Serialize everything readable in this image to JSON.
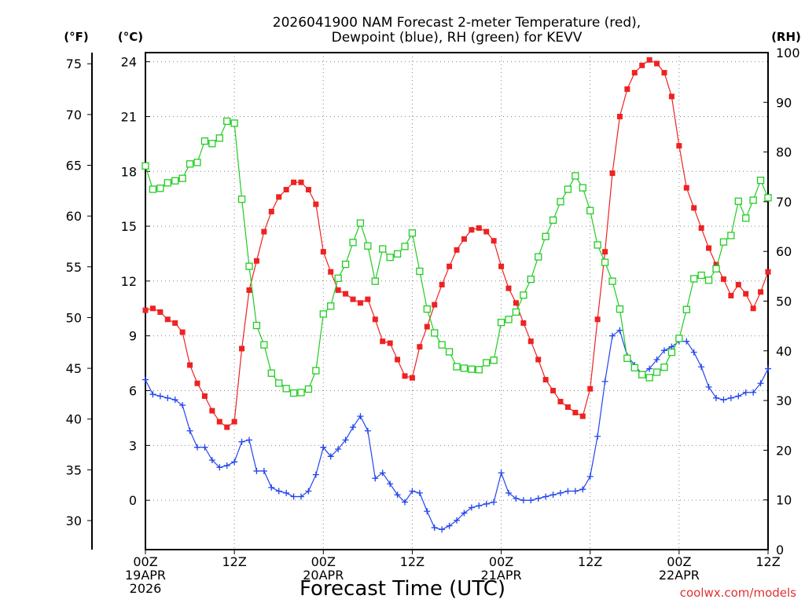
{
  "chart_data": {
    "type": "line",
    "title": [
      "2026041900 NAM Forecast 2-meter Temperature (red),",
      "Dewpoint (blue), RH (green) for KEVV"
    ],
    "xlabel": "Forecast Time (UTC)",
    "credit": "coolwx.com/models",
    "unit_f": "(°F)",
    "unit_c": "(°C)",
    "unit_rh": "(RH)",
    "xlim": [
      0,
      84
    ],
    "ylim_c": [
      -2.7,
      24.5
    ],
    "ylim_rh": [
      0,
      100
    ],
    "x_ticks": [
      {
        "x": 0,
        "lines": [
          "00Z",
          "19APR",
          "2026"
        ]
      },
      {
        "x": 12,
        "lines": [
          "12Z"
        ]
      },
      {
        "x": 24,
        "lines": [
          "00Z",
          "20APR"
        ]
      },
      {
        "x": 36,
        "lines": [
          "12Z"
        ]
      },
      {
        "x": 48,
        "lines": [
          "00Z",
          "21APR"
        ]
      },
      {
        "x": 60,
        "lines": [
          "12Z"
        ]
      },
      {
        "x": 72,
        "lines": [
          "00Z",
          "22APR"
        ]
      },
      {
        "x": 84,
        "lines": [
          "12Z"
        ]
      }
    ],
    "c_ticks": [
      0,
      3,
      6,
      9,
      12,
      15,
      18,
      21,
      24
    ],
    "f_ticks": [
      30,
      35,
      40,
      45,
      50,
      55,
      60,
      65,
      70,
      75
    ],
    "rh_ticks": [
      0,
      10,
      20,
      30,
      40,
      50,
      60,
      70,
      80,
      90,
      100
    ],
    "grid": true,
    "x": [
      0,
      1,
      2,
      3,
      4,
      5,
      6,
      7,
      8,
      9,
      10,
      11,
      12,
      13,
      14,
      15,
      16,
      17,
      18,
      19,
      20,
      21,
      22,
      23,
      24,
      25,
      26,
      27,
      28,
      29,
      30,
      31,
      32,
      33,
      34,
      35,
      36,
      37,
      38,
      39,
      40,
      41,
      42,
      43,
      44,
      45,
      46,
      47,
      48,
      49,
      50,
      51,
      52,
      53,
      54,
      55,
      56,
      57,
      58,
      59,
      60,
      61,
      62,
      63,
      64,
      65,
      66,
      67,
      68,
      69,
      70,
      71,
      72,
      73,
      74,
      75,
      76,
      77,
      78,
      79,
      80,
      81,
      82,
      83,
      84
    ],
    "series": [
      {
        "name": "2-meter Temperature (red)",
        "color": "#ee2222",
        "marker": "filled-square",
        "axis": "C",
        "values": [
          10.4,
          10.5,
          10.3,
          9.9,
          9.7,
          9.2,
          7.4,
          6.4,
          5.7,
          4.9,
          4.3,
          4.0,
          4.3,
          8.3,
          11.5,
          13.1,
          14.7,
          15.8,
          16.6,
          17.0,
          17.4,
          17.4,
          17.0,
          16.2,
          13.6,
          12.5,
          11.5,
          11.3,
          11.0,
          10.8,
          11.0,
          9.9,
          8.7,
          8.6,
          7.7,
          6.8,
          6.7,
          8.4,
          9.5,
          10.7,
          11.8,
          12.8,
          13.7,
          14.3,
          14.8,
          14.9,
          14.7,
          14.2,
          12.8,
          11.6,
          10.8,
          9.7,
          8.7,
          7.7,
          6.6,
          6.0,
          5.4,
          5.1,
          4.8,
          4.6,
          6.1,
          9.9,
          13.6,
          17.9,
          21.0,
          22.5,
          23.4,
          23.8,
          24.1,
          23.9,
          23.4,
          22.1,
          19.4,
          17.1,
          16.0,
          14.9,
          13.8,
          12.9,
          12.1,
          11.2,
          11.8,
          11.3,
          10.5,
          11.4,
          12.5
        ]
      },
      {
        "name": "Dewpoint (blue)",
        "color": "#2244ee",
        "marker": "plus",
        "axis": "C",
        "values": [
          6.6,
          5.8,
          5.7,
          5.6,
          5.5,
          5.2,
          3.8,
          2.9,
          2.9,
          2.2,
          1.8,
          1.9,
          2.1,
          3.2,
          3.3,
          1.6,
          1.6,
          0.7,
          0.5,
          0.4,
          0.2,
          0.2,
          0.5,
          1.4,
          2.9,
          2.4,
          2.8,
          3.3,
          4.0,
          4.6,
          3.8,
          1.2,
          1.5,
          0.9,
          0.3,
          -0.1,
          0.5,
          0.4,
          -0.6,
          -1.5,
          -1.6,
          -1.4,
          -1.1,
          -0.7,
          -0.4,
          -0.3,
          -0.2,
          -0.1,
          1.5,
          0.4,
          0.1,
          0.0,
          0.0,
          0.1,
          0.2,
          0.3,
          0.4,
          0.5,
          0.5,
          0.6,
          1.3,
          3.5,
          6.5,
          9.0,
          9.3,
          7.9,
          7.4,
          6.9,
          7.2,
          7.7,
          8.2,
          8.4,
          8.7,
          8.7,
          8.1,
          7.3,
          6.2,
          5.6,
          5.5,
          5.6,
          5.7,
          5.9,
          5.9,
          6.4,
          7.2
        ]
      },
      {
        "name": "RH (green)",
        "color": "#22cc22",
        "marker": "open-square",
        "axis": "RH",
        "values": [
          77.2,
          72.5,
          72.7,
          73.8,
          74.2,
          74.7,
          77.6,
          77.9,
          82.2,
          81.7,
          82.8,
          86.2,
          85.8,
          70.5,
          57.0,
          45.1,
          41.2,
          35.5,
          33.5,
          32.4,
          31.5,
          31.6,
          32.3,
          36.0,
          47.4,
          49.0,
          54.6,
          57.4,
          61.8,
          65.7,
          61.1,
          54.0,
          60.5,
          58.8,
          59.5,
          61.0,
          63.7,
          56.0,
          48.4,
          43.6,
          41.2,
          39.8,
          36.8,
          36.5,
          36.3,
          36.2,
          37.6,
          38.1,
          45.7,
          46.3,
          47.8,
          51.2,
          54.4,
          58.9,
          63.0,
          66.3,
          70.0,
          72.5,
          75.2,
          72.8,
          68.2,
          61.3,
          57.8,
          54.0,
          48.4,
          38.5,
          36.6,
          35.2,
          34.6,
          35.7,
          36.7,
          39.7,
          42.5,
          48.3,
          54.5,
          55.2,
          54.2,
          56.5,
          61.9,
          63.2,
          70.1,
          66.7,
          70.3,
          74.3,
          70.8
        ]
      }
    ]
  }
}
